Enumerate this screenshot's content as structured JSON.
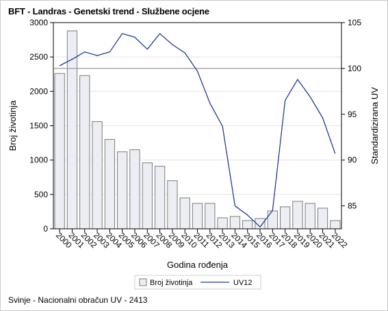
{
  "title": "BFT - Landras - Genetski trend - Službene ocjene",
  "footnote": "Svinje - Nacionalni obračun UV - 2413",
  "colors": {
    "bar_fill": "#eceef3",
    "bar_stroke": "#7c7c7c",
    "line": "#1f3b93",
    "axis": "#000000",
    "grid": "#e4e4e4",
    "refline": "#9a9a9a"
  },
  "chart_data": {
    "type": "bar",
    "xlabel": "Godina rođenja",
    "ylabel": "Broj životinja",
    "y2label": "Standardizirana UV",
    "categories": [
      "2000",
      "2001",
      "2002",
      "2003",
      "2004",
      "2005",
      "2006",
      "2007",
      "2008",
      "2009",
      "2010",
      "2011",
      "2012",
      "2013",
      "2014",
      "2015",
      "2016",
      "2017",
      "2018",
      "2019",
      "2020",
      "2021",
      "2022"
    ],
    "ylim": [
      0,
      3000
    ],
    "yticks": [
      0,
      500,
      1000,
      1500,
      2000,
      2500,
      3000
    ],
    "y2lim": [
      82.5,
      105
    ],
    "y2ticks": [
      85,
      90,
      95,
      100,
      105
    ],
    "y2_reference": 100,
    "grid": true,
    "legend_position": "bottom",
    "series": [
      {
        "name": "Broj životinja",
        "type": "bar",
        "axis": "left",
        "values": [
          2260,
          2880,
          2230,
          1560,
          1300,
          1120,
          1150,
          960,
          910,
          700,
          450,
          370,
          370,
          160,
          180,
          120,
          150,
          260,
          320,
          400,
          370,
          300,
          120
        ]
      },
      {
        "name": "UV12",
        "type": "line",
        "axis": "right",
        "values": [
          100.3,
          101.0,
          101.8,
          101.4,
          101.8,
          103.8,
          103.4,
          102.1,
          103.8,
          102.6,
          101.7,
          99.7,
          96.2,
          93.7,
          85.0,
          84.0,
          82.7,
          84.5,
          96.5,
          98.8,
          96.9,
          94.6,
          90.7
        ]
      }
    ]
  }
}
